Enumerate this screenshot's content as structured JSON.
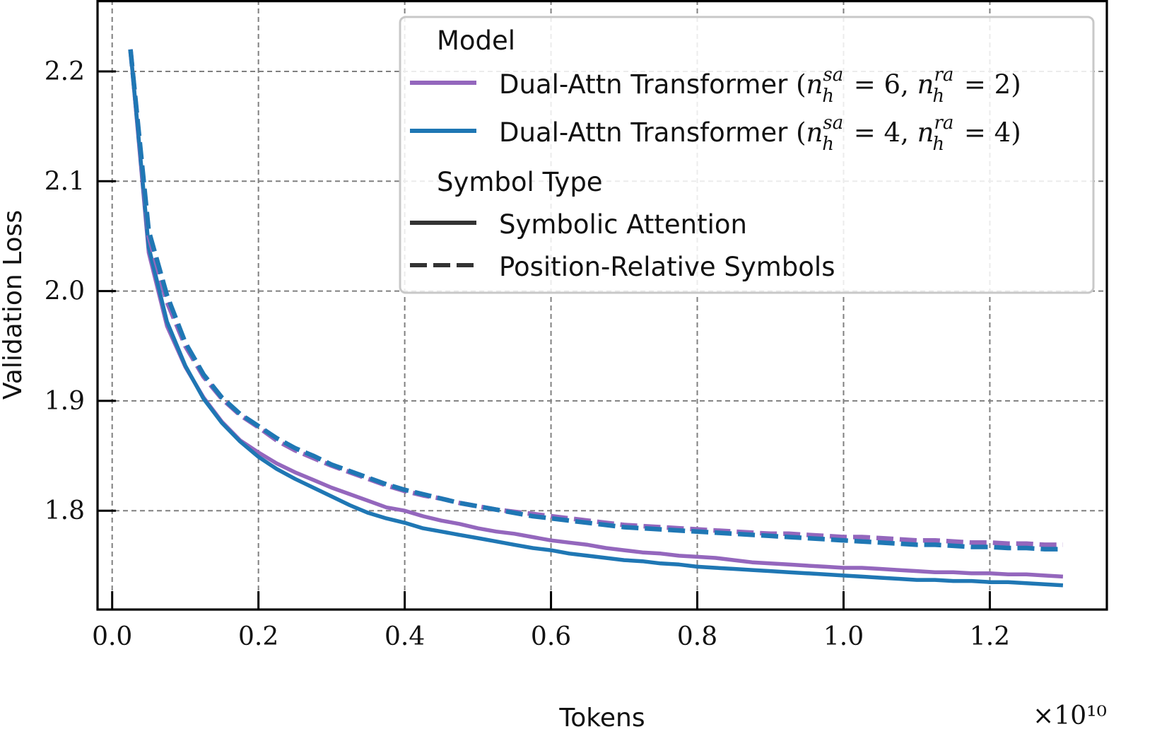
{
  "chart_data": {
    "type": "line",
    "xlabel": "Tokens",
    "ylabel": "Validation Loss",
    "x_multiplier_label": "×10¹⁰",
    "xlim": [
      -0.02,
      1.36
    ],
    "ylim": [
      1.71,
      2.265
    ],
    "x_ticks": [
      0.0,
      0.2,
      0.4,
      0.6,
      0.8,
      1.0,
      1.2
    ],
    "x_tick_labels": [
      "0.0",
      "0.2",
      "0.4",
      "0.6",
      "0.8",
      "1.0",
      "1.2"
    ],
    "y_ticks": [
      1.8,
      1.9,
      2.0,
      2.1,
      2.2
    ],
    "y_tick_labels": [
      "1.8",
      "1.9",
      "2.0",
      "2.1",
      "2.2"
    ],
    "grid": true,
    "legend": {
      "placement": "top-right",
      "model_title": "Model",
      "models": [
        {
          "label": "Dual-Attn Transformer",
          "math": {
            "open": "(",
            "var": "n",
            "sub": "h",
            "sup1": "sa",
            "val1": "6",
            "sup2": "ra",
            "val2": "2",
            "close": ")"
          },
          "color": "#9467bd"
        },
        {
          "label": "Dual-Attn Transformer",
          "math": {
            "open": "(",
            "var": "n",
            "sub": "h",
            "sup1": "sa",
            "val1": "4",
            "sup2": "ra",
            "val2": "4",
            "close": ")"
          },
          "color": "#1f77b4"
        }
      ],
      "symbol_title": "Symbol Type",
      "symbols": [
        {
          "label": "Symbolic Attention",
          "style": "solid"
        },
        {
          "label": "Position-Relative Symbols",
          "style": "dashed"
        }
      ]
    },
    "x": [
      0.025,
      0.05,
      0.075,
      0.1,
      0.125,
      0.15,
      0.175,
      0.2,
      0.225,
      0.25,
      0.275,
      0.3,
      0.325,
      0.35,
      0.375,
      0.4,
      0.425,
      0.45,
      0.475,
      0.5,
      0.525,
      0.55,
      0.575,
      0.6,
      0.625,
      0.65,
      0.675,
      0.7,
      0.725,
      0.75,
      0.775,
      0.8,
      0.825,
      0.85,
      0.875,
      0.9,
      0.925,
      0.95,
      0.975,
      1.0,
      1.025,
      1.05,
      1.075,
      1.1,
      1.125,
      1.15,
      1.175,
      1.2,
      1.225,
      1.25,
      1.275,
      1.3
    ],
    "series": [
      {
        "model": 0,
        "style": "solid",
        "color": "#9467bd",
        "values": [
          2.22,
          2.035,
          1.968,
          1.931,
          1.903,
          1.881,
          1.864,
          1.853,
          1.843,
          1.835,
          1.828,
          1.821,
          1.815,
          1.809,
          1.803,
          1.8,
          1.795,
          1.791,
          1.788,
          1.784,
          1.781,
          1.779,
          1.776,
          1.773,
          1.771,
          1.769,
          1.766,
          1.764,
          1.762,
          1.761,
          1.759,
          1.758,
          1.757,
          1.755,
          1.753,
          1.752,
          1.751,
          1.75,
          1.749,
          1.748,
          1.748,
          1.747,
          1.746,
          1.745,
          1.744,
          1.744,
          1.743,
          1.743,
          1.742,
          1.742,
          1.741,
          1.74
        ]
      },
      {
        "model": 1,
        "style": "solid",
        "color": "#1f77b4",
        "values": [
          2.22,
          2.04,
          1.972,
          1.932,
          1.902,
          1.88,
          1.863,
          1.849,
          1.838,
          1.829,
          1.821,
          1.813,
          1.805,
          1.798,
          1.793,
          1.789,
          1.784,
          1.781,
          1.778,
          1.775,
          1.772,
          1.769,
          1.766,
          1.764,
          1.761,
          1.759,
          1.757,
          1.755,
          1.754,
          1.752,
          1.751,
          1.749,
          1.748,
          1.747,
          1.746,
          1.745,
          1.744,
          1.743,
          1.742,
          1.741,
          1.74,
          1.739,
          1.738,
          1.737,
          1.737,
          1.736,
          1.736,
          1.735,
          1.735,
          1.734,
          1.733,
          1.732
        ]
      },
      {
        "model": 0,
        "style": "dashed",
        "color": "#9467bd",
        "values": [
          2.22,
          2.05,
          1.99,
          1.95,
          1.922,
          1.902,
          1.887,
          1.876,
          1.864,
          1.855,
          1.848,
          1.841,
          1.835,
          1.829,
          1.823,
          1.818,
          1.814,
          1.811,
          1.807,
          1.804,
          1.801,
          1.799,
          1.797,
          1.795,
          1.793,
          1.791,
          1.789,
          1.787,
          1.786,
          1.785,
          1.784,
          1.783,
          1.782,
          1.781,
          1.78,
          1.779,
          1.779,
          1.778,
          1.777,
          1.776,
          1.776,
          1.775,
          1.774,
          1.773,
          1.773,
          1.772,
          1.771,
          1.771,
          1.77,
          1.77,
          1.769,
          1.769
        ]
      },
      {
        "model": 1,
        "style": "dashed",
        "color": "#1f77b4",
        "values": [
          2.22,
          2.055,
          1.996,
          1.953,
          1.924,
          1.903,
          1.888,
          1.877,
          1.866,
          1.857,
          1.85,
          1.842,
          1.836,
          1.83,
          1.824,
          1.819,
          1.815,
          1.811,
          1.807,
          1.804,
          1.801,
          1.798,
          1.795,
          1.793,
          1.791,
          1.789,
          1.787,
          1.785,
          1.784,
          1.783,
          1.782,
          1.781,
          1.78,
          1.779,
          1.778,
          1.777,
          1.776,
          1.775,
          1.774,
          1.773,
          1.772,
          1.771,
          1.77,
          1.769,
          1.769,
          1.768,
          1.767,
          1.767,
          1.766,
          1.766,
          1.765,
          1.765
        ]
      }
    ]
  }
}
